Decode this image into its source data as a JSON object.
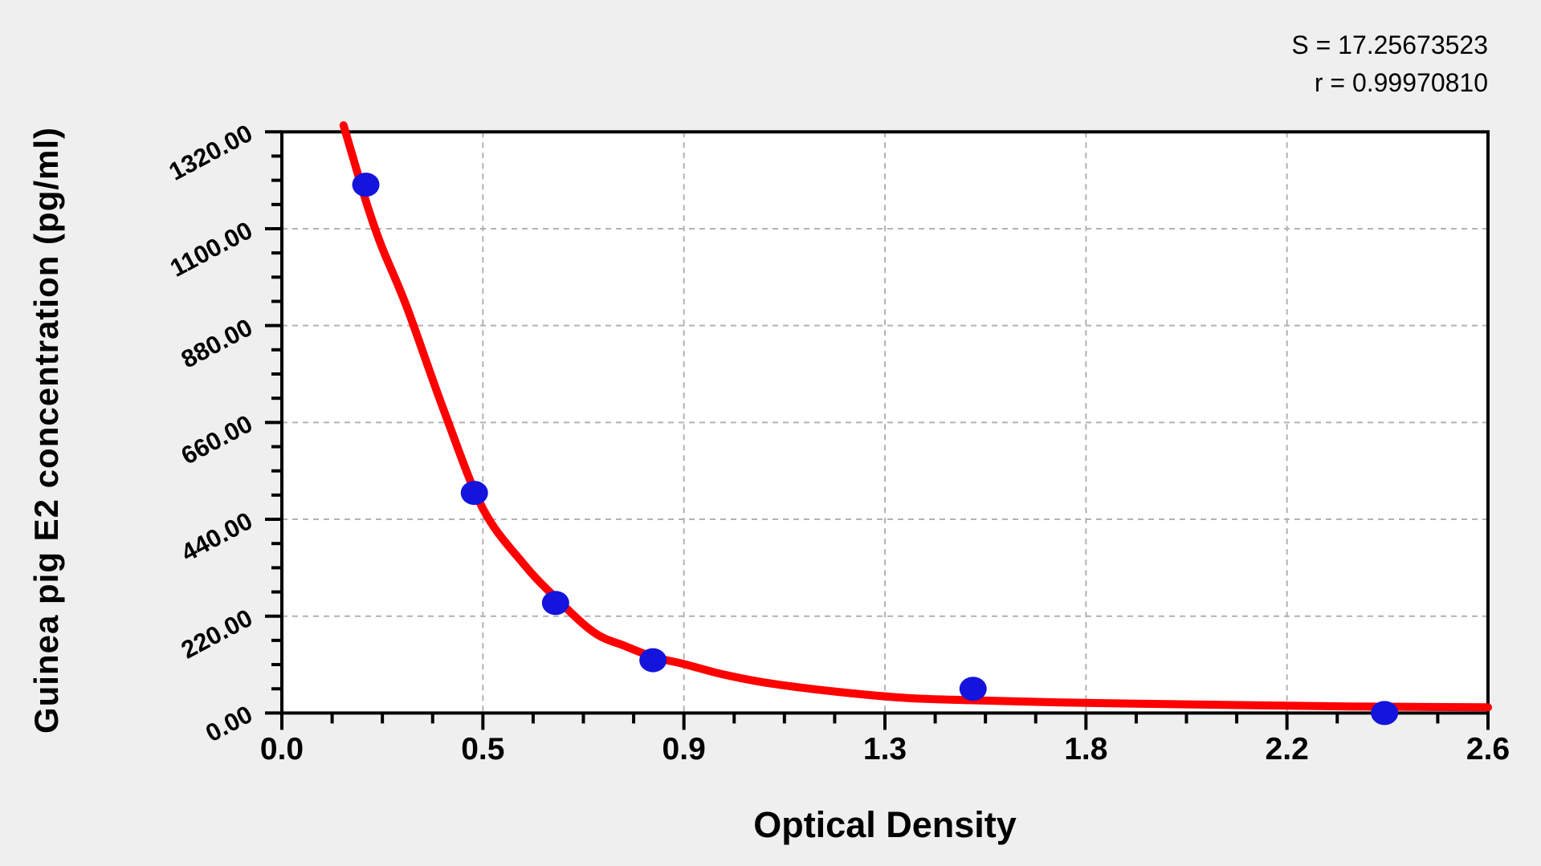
{
  "annotations": {
    "s_line": "S = 17.25673523",
    "r_line": "r = 0.99970810"
  },
  "chart_data": {
    "type": "scatter",
    "title": "",
    "xlabel": "Optical Density",
    "ylabel": "Guinea pig E2 concentration (pg/ml)",
    "x_axis": {
      "min": 0,
      "max": 2.6,
      "tick_labels": [
        "0.0",
        "0.5",
        "0.9",
        "1.3",
        "1.8",
        "2.2",
        "2.6"
      ],
      "minor_divisions": 4
    },
    "y_axis": {
      "min": 0,
      "max": 1320,
      "tick_labels": [
        "0.00",
        "220.00",
        "440.00",
        "660.00",
        "880.00",
        "1100.00",
        "1320.00"
      ],
      "minor_divisions": 4
    },
    "grid": {
      "style": "dashed",
      "color": "#b2b2b2"
    },
    "legend_position": "none",
    "stats": {
      "S": "17.25673523",
      "r": "0.99970810"
    },
    "series": [
      {
        "name": "standard-points",
        "type": "scatter",
        "color": "#1414dc",
        "points": [
          {
            "x": 0.181,
            "y": 1200
          },
          {
            "x": 0.415,
            "y": 500
          },
          {
            "x": 0.59,
            "y": 250
          },
          {
            "x": 0.8,
            "y": 120
          },
          {
            "x": 1.49,
            "y": 55
          },
          {
            "x": 2.377,
            "y": 0
          }
        ]
      },
      {
        "name": "fitted-standard-curve",
        "type": "line",
        "color": "#ff0000",
        "points": [
          [
            0.133,
            1335
          ],
          [
            0.158,
            1245
          ],
          [
            0.185,
            1150
          ],
          [
            0.215,
            1060
          ],
          [
            0.27,
            920
          ],
          [
            0.35,
            685
          ],
          [
            0.433,
            465
          ],
          [
            0.52,
            340
          ],
          [
            0.59,
            262
          ],
          [
            0.673,
            183
          ],
          [
            0.74,
            152
          ],
          [
            0.802,
            127
          ],
          [
            0.864,
            112
          ],
          [
            0.95,
            88
          ],
          [
            1.054,
            67
          ],
          [
            1.2,
            48
          ],
          [
            1.349,
            34
          ],
          [
            1.489,
            29
          ],
          [
            1.733,
            23
          ],
          [
            2.0,
            19
          ],
          [
            2.3,
            15
          ],
          [
            2.6,
            13
          ]
        ]
      }
    ]
  },
  "colors": {
    "curve": "#ff0000",
    "marker": "#1414dc",
    "grid": "#b2b2b2",
    "axis": "#000000",
    "plot_bg": "#ffffff",
    "page_bg": "#efefef"
  }
}
